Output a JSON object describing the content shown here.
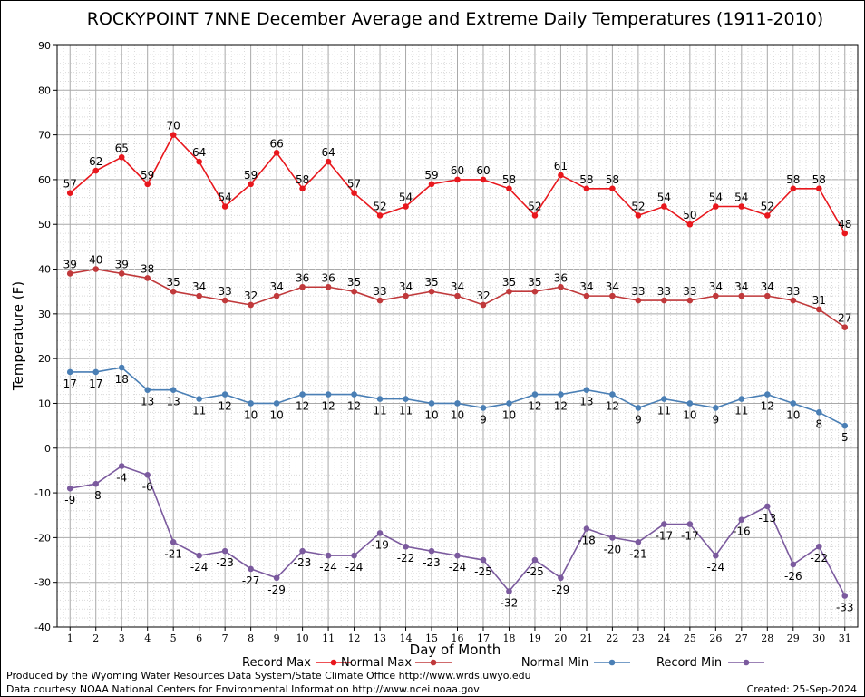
{
  "chart_data": {
    "type": "line",
    "title": "ROCKYPOINT 7NNE December Average and Extreme Daily Temperatures (1911-2010)",
    "xlabel": "Day of Month",
    "ylabel": "Temperature (F)",
    "ylim": [
      -40,
      90
    ],
    "yticks": [
      90,
      80,
      70,
      60,
      50,
      40,
      30,
      20,
      10,
      0,
      -10,
      -20,
      -30,
      -40
    ],
    "x": [
      1,
      2,
      3,
      4,
      5,
      6,
      7,
      8,
      9,
      10,
      11,
      12,
      13,
      14,
      15,
      16,
      17,
      18,
      19,
      20,
      21,
      22,
      23,
      24,
      25,
      26,
      27,
      28,
      29,
      30,
      31
    ],
    "grid": true,
    "legend_placement": "bottom",
    "series": [
      {
        "name": "Record Max",
        "color": "#e8171d",
        "values": [
          57,
          62,
          65,
          59,
          70,
          64,
          54,
          59,
          66,
          58,
          64,
          57,
          52,
          54,
          59,
          60,
          60,
          58,
          52,
          61,
          58,
          58,
          52,
          54,
          50,
          54,
          54,
          52,
          58,
          58,
          48
        ]
      },
      {
        "name": "Normal Max",
        "color": "#c0393b",
        "values": [
          39,
          40,
          39,
          38,
          35,
          34,
          33,
          32,
          34,
          36,
          36,
          35,
          33,
          34,
          35,
          34,
          32,
          35,
          35,
          36,
          34,
          34,
          33,
          33,
          33,
          34,
          34,
          34,
          33,
          31,
          27
        ]
      },
      {
        "name": "Normal Min",
        "color": "#4a7fb5",
        "values": [
          17,
          17,
          18,
          13,
          13,
          11,
          12,
          10,
          10,
          12,
          12,
          12,
          11,
          11,
          10,
          10,
          9,
          10,
          12,
          12,
          13,
          12,
          9,
          11,
          10,
          9,
          11,
          12,
          10,
          8,
          5
        ]
      },
      {
        "name": "Record Min",
        "color": "#7b5a9e",
        "values": [
          -9,
          -8,
          -4,
          -6,
          -21,
          -24,
          -23,
          -27,
          -29,
          -23,
          -24,
          -24,
          -19,
          -22,
          -23,
          -24,
          -25,
          -32,
          -25,
          -29,
          -18,
          -20,
          -21,
          -17,
          -17,
          -24,
          -16,
          -13,
          -26,
          -22,
          -33
        ]
      }
    ]
  },
  "footer": {
    "line1": "Produced by the Wyoming Water Resources Data System/State Climate Office http://www.wrds.uwyo.edu",
    "line2": "Data courtesy NOAA National Centers for Environmental Information http://www.ncei.noaa.gov",
    "created": "Created:  25-Sep-2024"
  }
}
